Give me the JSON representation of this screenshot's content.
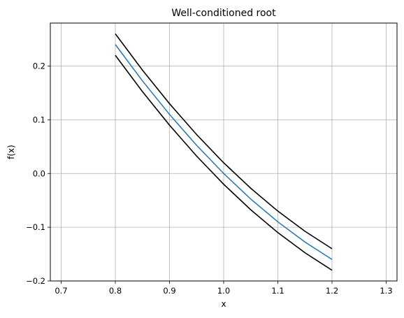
{
  "chart_data": {
    "type": "line",
    "title": "Well-conditioned root",
    "xlabel": "x",
    "ylabel": "f(x)",
    "xlim": [
      0.68,
      1.32
    ],
    "ylim": [
      -0.2,
      0.28
    ],
    "grid": true,
    "xticks": [
      0.7,
      0.8,
      0.9,
      1.0,
      1.1,
      1.2,
      1.3
    ],
    "xtick_labels": [
      "0.7",
      "0.8",
      "0.9",
      "1.0",
      "1.1",
      "1.2",
      "1.3"
    ],
    "yticks": [
      -0.2,
      -0.1,
      0.0,
      0.1,
      0.2
    ],
    "ytick_labels": [
      "−0.2",
      "−0.1",
      "0.0",
      "0.1",
      "0.2"
    ],
    "series": [
      {
        "color": "#1f77b4",
        "x": [
          0.8,
          0.85,
          0.9,
          0.95,
          1.0,
          1.05,
          1.1,
          1.15,
          1.2
        ],
        "y": [
          0.24,
          0.1725,
          0.11,
          0.0525,
          0.0,
          -0.0475,
          -0.09,
          -0.1275,
          -0.16
        ]
      },
      {
        "color": "#000000",
        "x": [
          0.8,
          0.85,
          0.9,
          0.95,
          1.0,
          1.05,
          1.1,
          1.15,
          1.2
        ],
        "y": [
          0.26,
          0.1925,
          0.13,
          0.0725,
          0.02,
          -0.0275,
          -0.07,
          -0.1075,
          -0.14
        ]
      },
      {
        "color": "#000000",
        "x": [
          0.8,
          0.85,
          0.9,
          0.95,
          1.0,
          1.05,
          1.1,
          1.15,
          1.2
        ],
        "y": [
          0.22,
          0.1525,
          0.09,
          0.0325,
          -0.02,
          -0.0675,
          -0.11,
          -0.1475,
          -0.18
        ]
      }
    ]
  }
}
